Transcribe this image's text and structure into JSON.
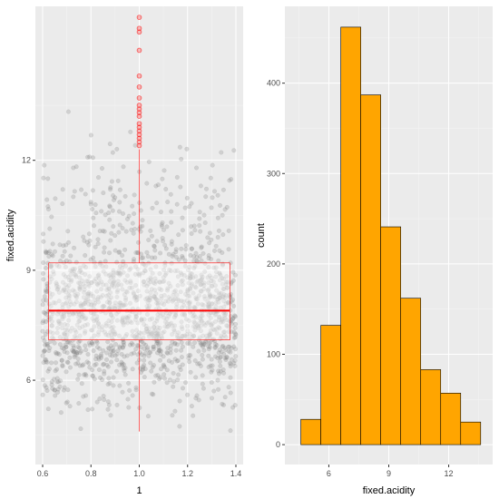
{
  "chart_data": [
    {
      "type": "box_jitter",
      "xlabel": "1",
      "ylabel": "fixed.acidity",
      "xlim": [
        0.57,
        1.43
      ],
      "ylim": [
        3.7,
        16.2
      ],
      "x_ticks": [
        "0.6",
        "0.8",
        "1.0",
        "1.2",
        "1.4"
      ],
      "y_ticks": [
        "6",
        "9",
        "12"
      ],
      "box": {
        "x": 1.0,
        "width": 0.75,
        "min": 4.6,
        "q1": 7.1,
        "median": 7.9,
        "q3": 9.2,
        "max": 12.3,
        "outliers": [
          12.4,
          12.5,
          12.6,
          12.7,
          12.8,
          12.9,
          13.0,
          13.2,
          13.3,
          13.4,
          13.5,
          13.7,
          14.0,
          14.3,
          15.0,
          15.5,
          15.6,
          15.9
        ],
        "color": "#ff0000",
        "fill": "rgba(255,255,255,0.45)"
      },
      "jitter": {
        "n": 1599,
        "x_range": [
          0.6,
          1.4
        ],
        "color": "#7f7f7f",
        "alpha": 0.25
      }
    },
    {
      "type": "histogram",
      "xlabel": "fixed.acidity",
      "ylabel": "count",
      "xlim": [
        3.8,
        14.2
      ],
      "ylim": [
        -22,
        485
      ],
      "x_ticks": [
        "6",
        "9",
        "12"
      ],
      "y_ticks": [
        "0",
        "100",
        "200",
        "300",
        "400"
      ],
      "bins": [
        {
          "x0": 4.6,
          "x1": 5.6,
          "count": 28
        },
        {
          "x0": 5.6,
          "x1": 6.6,
          "count": 132
        },
        {
          "x0": 6.6,
          "x1": 7.6,
          "count": 462
        },
        {
          "x0": 7.6,
          "x1": 8.6,
          "count": 387
        },
        {
          "x0": 8.6,
          "x1": 9.6,
          "count": 241
        },
        {
          "x0": 9.6,
          "x1": 10.6,
          "count": 162
        },
        {
          "x0": 10.6,
          "x1": 11.6,
          "count": 83
        },
        {
          "x0": 11.6,
          "x1": 12.6,
          "count": 57
        },
        {
          "x0": 12.6,
          "x1": 13.6,
          "count": 25
        }
      ],
      "fill": "#ffa500",
      "stroke": "#000000"
    }
  ]
}
